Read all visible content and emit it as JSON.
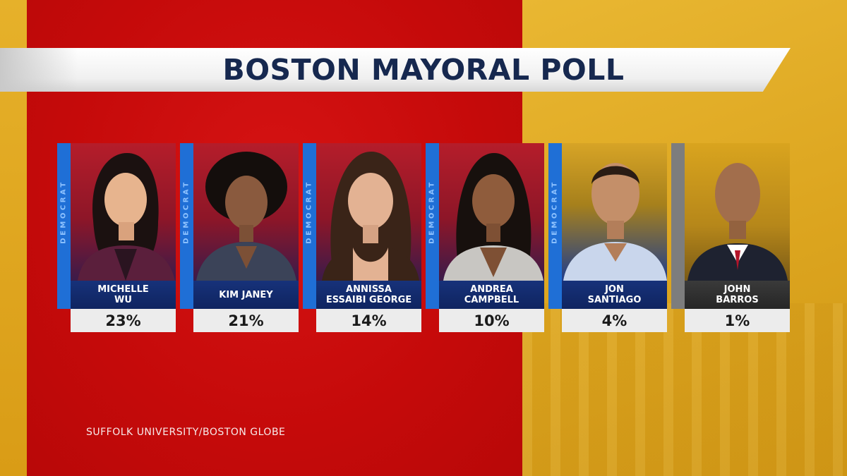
{
  "title": "BOSTON MAYORAL POLL",
  "source": "SUFFOLK UNIVERSITY/BOSTON GLOBE",
  "candidates": [
    {
      "name": "MICHELLE\nWU",
      "percent": "23%",
      "party": "DEMOCRAT"
    },
    {
      "name": "KIM JANEY",
      "percent": "21%",
      "party": "DEMOCRAT"
    },
    {
      "name": "ANNISSA\nESSAIBI GEORGE",
      "percent": "14%",
      "party": "DEMOCRAT"
    },
    {
      "name": "ANDREA\nCAMPBELL",
      "percent": "10%",
      "party": "DEMOCRAT"
    },
    {
      "name": "JON\nSANTIAGO",
      "percent": "4%",
      "party": "DEMOCRAT"
    },
    {
      "name": "JOHN\nBARROS",
      "percent": "1%",
      "party": ""
    }
  ],
  "colors": {
    "red_panel": "#c50a0a",
    "gold_panel": "#e0aa22",
    "democrat_strip": "#1f6fd6",
    "name_plate": "#17327a",
    "title_text": "#16284f"
  }
}
